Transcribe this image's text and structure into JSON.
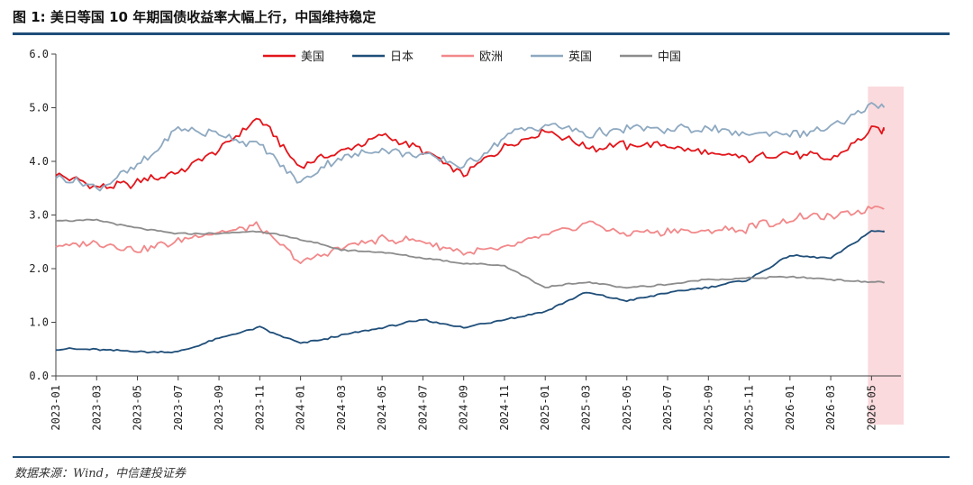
{
  "header": {
    "title": "图 1: 美日等国 10 年期国债收益率大幅上行，中国维持稳定"
  },
  "footer": {
    "source": "数据来源：Wind，中信建投证券"
  },
  "chart_data": {
    "type": "line",
    "title": "",
    "xlabel": "",
    "ylabel": "",
    "ylim": [
      0,
      6
    ],
    "yticks": [
      "0.0",
      "1.0",
      "2.0",
      "3.0",
      "4.0",
      "5.0",
      "6.0"
    ],
    "x": [
      "2023-01",
      "2023-03",
      "2023-05",
      "2023-07",
      "2023-09",
      "2023-11",
      "2024-01",
      "2024-03",
      "2024-05",
      "2024-07",
      "2024-09",
      "2024-11",
      "2025-01",
      "2025-03",
      "2025-05",
      "2025-07",
      "2025-09",
      "2025-11",
      "2026-01",
      "2026-03",
      "2026-05"
    ],
    "x_end": "2026-06",
    "legend_position": "top-center",
    "highlight_region": {
      "from": "2026-05",
      "to": "2026-06",
      "color": "#fadadd"
    },
    "series": [
      {
        "name": "美国",
        "color": "#e3151a",
        "values": [
          3.8,
          3.5,
          3.6,
          3.8,
          4.2,
          4.8,
          3.9,
          4.2,
          4.5,
          4.2,
          3.75,
          4.3,
          4.6,
          4.25,
          4.3,
          4.3,
          4.15,
          4.05,
          4.15,
          4.05,
          4.6
        ]
      },
      {
        "name": "日本",
        "color": "#1f4e79",
        "values": [
          0.5,
          0.5,
          0.45,
          0.45,
          0.7,
          0.9,
          0.6,
          0.75,
          0.9,
          1.05,
          0.9,
          1.05,
          1.2,
          1.55,
          1.4,
          1.55,
          1.65,
          1.8,
          2.25,
          2.2,
          2.7
        ]
      },
      {
        "name": "欧洲",
        "color": "#f2888a",
        "values": [
          2.4,
          2.5,
          2.35,
          2.5,
          2.7,
          2.8,
          2.1,
          2.4,
          2.55,
          2.5,
          2.3,
          2.35,
          2.6,
          2.85,
          2.65,
          2.7,
          2.7,
          2.75,
          2.95,
          2.95,
          3.15
        ]
      },
      {
        "name": "英国",
        "color": "#8ea9c1",
        "values": [
          3.7,
          3.5,
          3.9,
          4.6,
          4.5,
          4.3,
          3.6,
          4.1,
          4.2,
          4.1,
          3.9,
          4.45,
          4.7,
          4.5,
          4.6,
          4.6,
          4.6,
          4.5,
          4.5,
          4.6,
          5.05
        ]
      },
      {
        "name": "中国",
        "color": "#8c8c8c",
        "values": [
          2.9,
          2.9,
          2.75,
          2.65,
          2.65,
          2.7,
          2.55,
          2.35,
          2.3,
          2.2,
          2.1,
          2.05,
          1.65,
          1.75,
          1.65,
          1.7,
          1.8,
          1.82,
          1.85,
          1.8,
          1.75
        ]
      }
    ]
  }
}
